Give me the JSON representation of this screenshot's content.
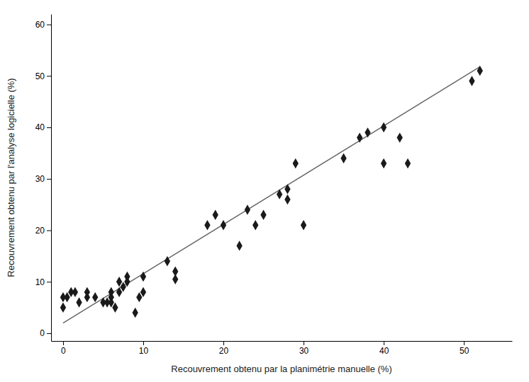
{
  "chart_data": {
    "type": "scatter",
    "xlabel": "Recouvrement obtenu par la planimétrie manuelle (%)",
    "ylabel": "Recouvrement obtenu par l'analyse logicielle (%)",
    "xlim": [
      -1.5,
      56
    ],
    "ylim": [
      -1.5,
      62
    ],
    "xticks": [
      0,
      10,
      20,
      30,
      40,
      50
    ],
    "yticks": [
      0,
      10,
      20,
      30,
      40,
      50,
      60
    ],
    "grid": false,
    "series": [
      {
        "type": "scatter",
        "marker": "diamond",
        "color": "#1a1a1a",
        "x": [
          0,
          0,
          0.5,
          1,
          1.5,
          2,
          3,
          3,
          4,
          5,
          5.5,
          6,
          6,
          6,
          6.5,
          7,
          7,
          7.5,
          8,
          8,
          9,
          9.5,
          10,
          10,
          13,
          14,
          14,
          18,
          19,
          20,
          22,
          23,
          24,
          25,
          27,
          28,
          28,
          29,
          30,
          35,
          37,
          38,
          40,
          40,
          42,
          43,
          51,
          52
        ],
        "values": [
          5,
          7,
          7,
          8,
          8,
          6,
          7,
          8,
          7,
          6,
          6,
          6,
          7,
          8,
          5,
          8,
          10,
          9,
          10,
          11,
          4,
          7,
          8,
          11,
          14,
          10.5,
          12,
          21,
          23,
          21,
          17,
          24,
          21,
          23,
          27,
          26,
          28,
          33,
          21,
          34,
          38,
          39,
          40,
          33,
          38,
          33,
          49,
          51
        ]
      },
      {
        "type": "line",
        "line_style": "solid",
        "color": "#666666",
        "x": [
          0,
          52
        ],
        "values": [
          2.0,
          51.764
        ]
      }
    ]
  }
}
